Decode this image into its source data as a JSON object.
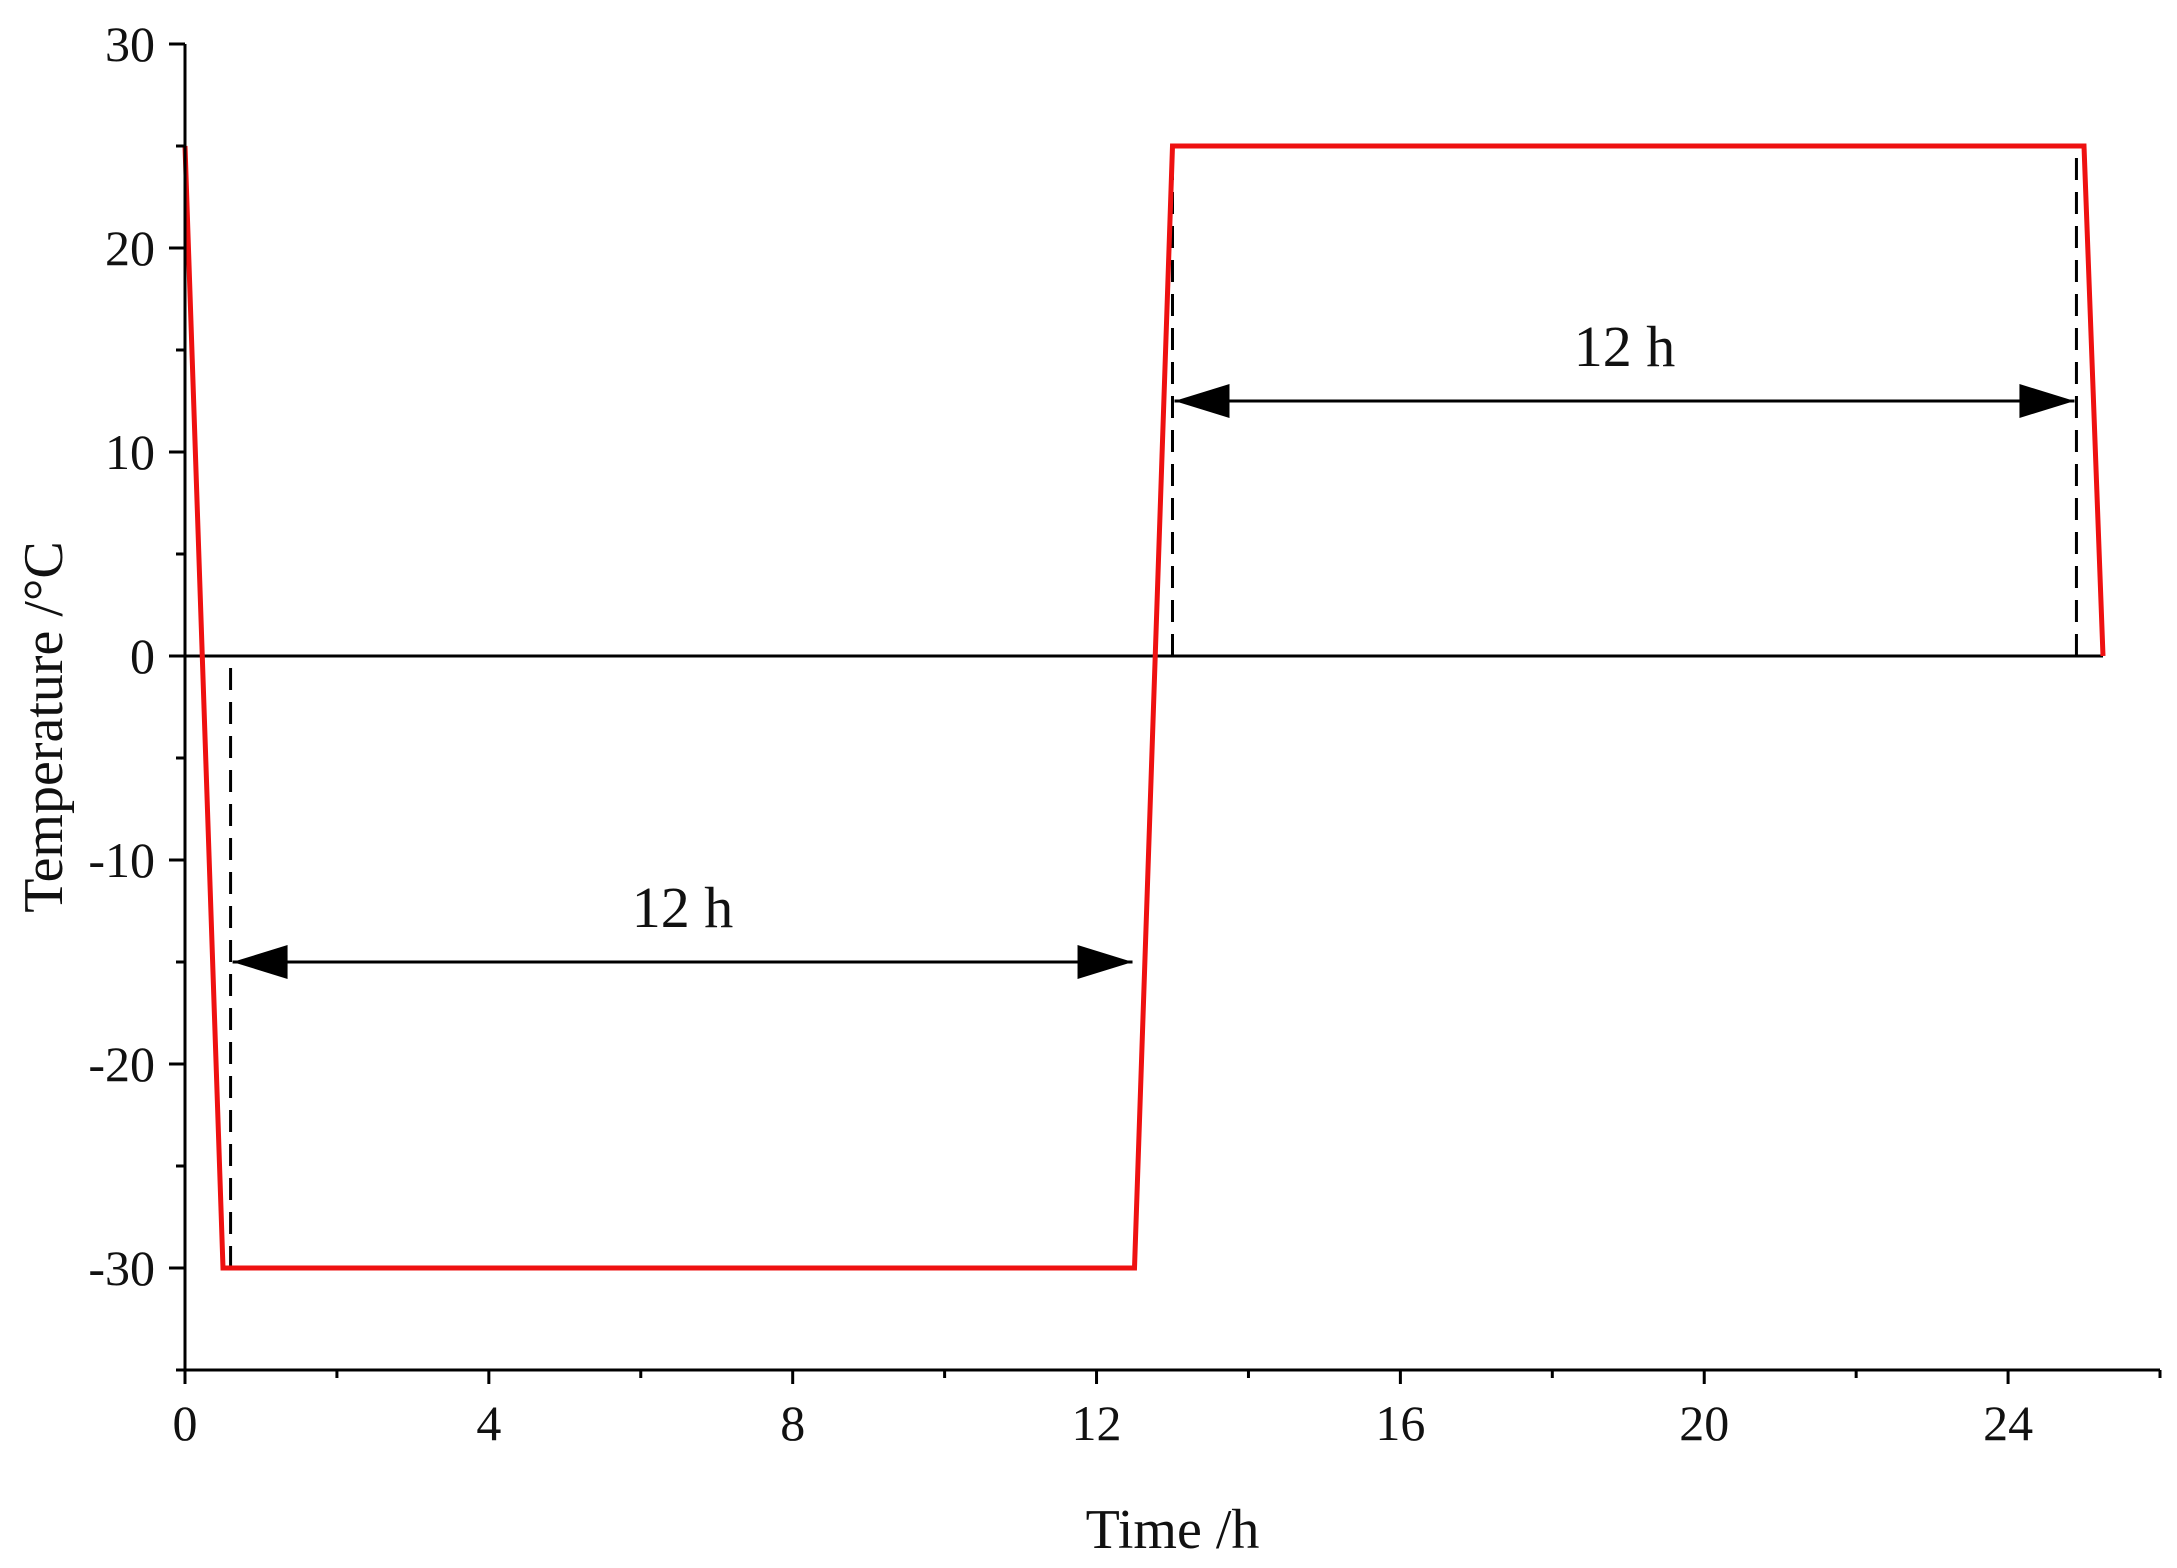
{
  "chart_data": {
    "type": "line",
    "title": "",
    "xlabel": "Time /h",
    "ylabel": "Temperature /°C",
    "xlim": [
      0,
      26
    ],
    "ylim": [
      -35,
      30
    ],
    "x_ticks": [
      0,
      4,
      8,
      12,
      16,
      20,
      24
    ],
    "x_minor_ticks": [
      2,
      6,
      10,
      14,
      18,
      22,
      26
    ],
    "y_ticks": [
      -30,
      -20,
      -10,
      0,
      10,
      20,
      30
    ],
    "y_minor_ticks": [
      -35,
      -25,
      -15,
      -5,
      5,
      15,
      25
    ],
    "grid": false,
    "legend": "none",
    "series": [
      {
        "color": "#ee1111",
        "x": [
          0,
          0.5,
          12.5,
          13.0,
          25.0,
          25.25
        ],
        "y": [
          25,
          -30,
          -30,
          25,
          25,
          0
        ]
      }
    ],
    "zero_line": {
      "y": 0,
      "x_range": [
        0,
        25.25
      ],
      "color": "#000000"
    },
    "reference_lines": [
      {
        "x": 0.6,
        "y_range": [
          -30,
          0
        ],
        "style": "dashed"
      },
      {
        "x": 13.0,
        "y_range": [
          0,
          25
        ],
        "style": "dashed"
      },
      {
        "x": 24.9,
        "y_range": [
          0,
          25
        ],
        "style": "dashed"
      }
    ],
    "annotations": [
      {
        "text": "12 h",
        "arrow_x": [
          0.6,
          12.5
        ],
        "arrow_y": -15
      },
      {
        "text": "12 h",
        "arrow_x": [
          13.0,
          24.9
        ],
        "arrow_y": 12.5
      }
    ]
  }
}
